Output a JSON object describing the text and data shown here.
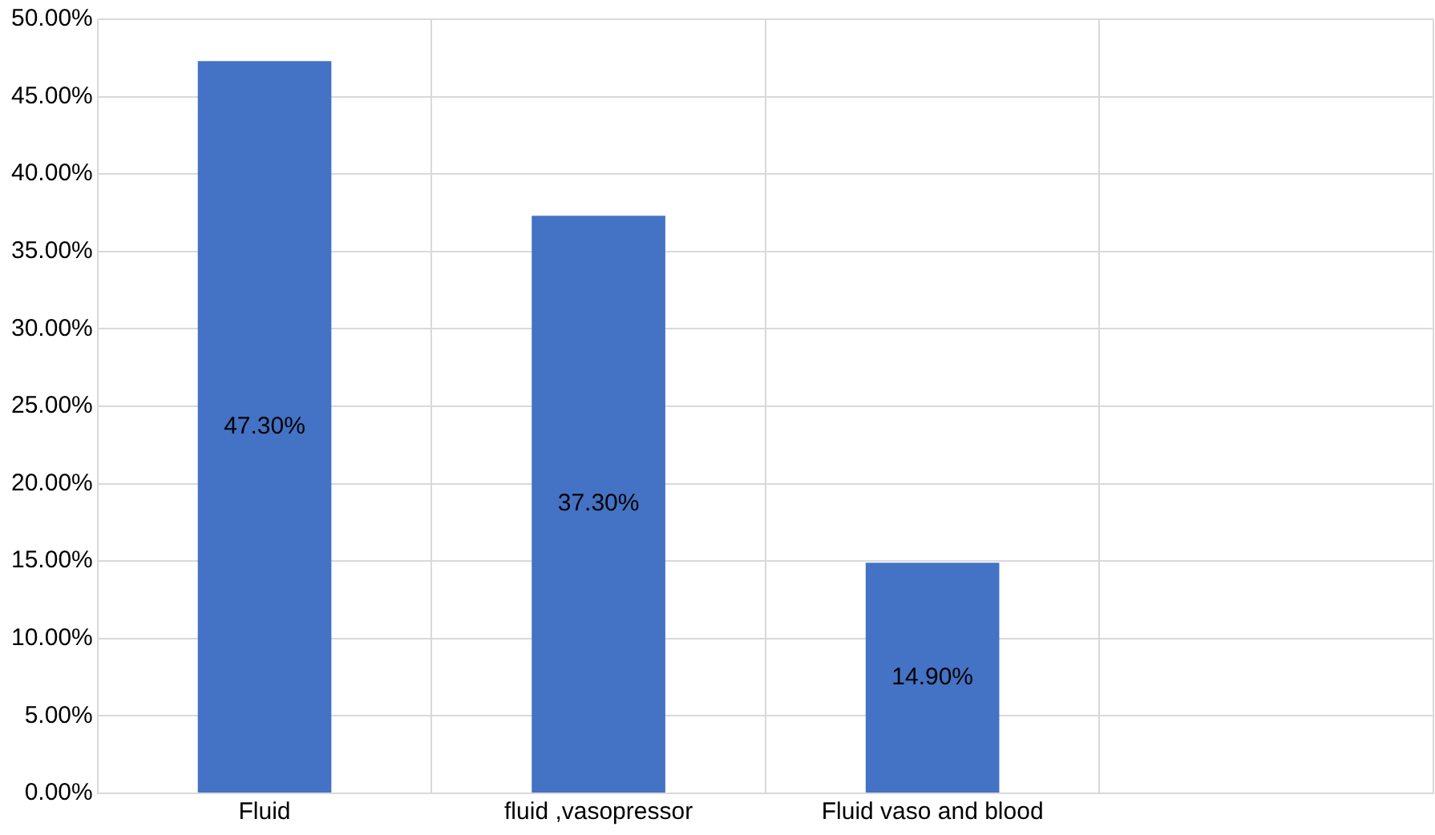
{
  "chart_data": {
    "type": "bar",
    "categories": [
      "Fluid",
      "fluid ,vasopressor",
      "Fluid vaso and blood",
      null
    ],
    "values": [
      47.3,
      37.3,
      14.9,
      null
    ],
    "color": "#4472c4",
    "value_labels": [
      "47.30%",
      "37.30%",
      "14.90%",
      null
    ],
    "ylim": [
      0,
      50
    ],
    "yticks": [
      {
        "value": 0,
        "label": "0.00%"
      },
      {
        "value": 5,
        "label": "5.00%"
      },
      {
        "value": 10,
        "label": "10.00%"
      },
      {
        "value": 15,
        "label": "15.00%"
      },
      {
        "value": 20,
        "label": "20.00%"
      },
      {
        "value": 25,
        "label": "25.00%"
      },
      {
        "value": 30,
        "label": "30.00%"
      },
      {
        "value": 35,
        "label": "35.00%"
      },
      {
        "value": 40,
        "label": "40.00%"
      },
      {
        "value": 45,
        "label": "45.00%"
      },
      {
        "value": 50,
        "label": "50.00%"
      }
    ],
    "grid": true
  }
}
